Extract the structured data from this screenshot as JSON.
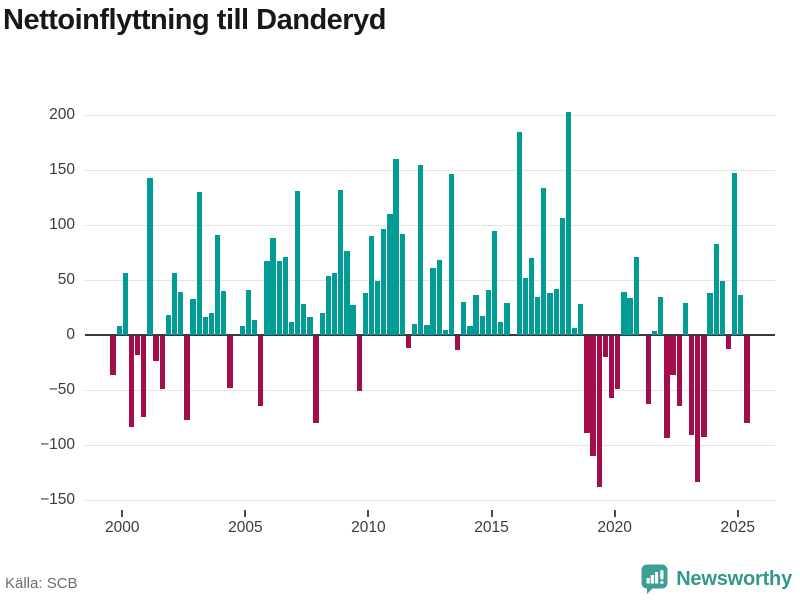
{
  "title": "Nettoinflyttning till Danderyd",
  "source": "Källa: SCB",
  "brand": {
    "name": "Newsworthy"
  },
  "colors": {
    "positive_bar": "#009C95",
    "negative_bar": "#A30D4B",
    "grid": "#e4e4e4",
    "zero_axis": "#3a3a3a",
    "brand_teal": "#3C9E94",
    "title_text": "#181818",
    "tick_text": "#3c3c3c",
    "source_text": "#6d6d6d"
  },
  "chart_data": {
    "type": "bar",
    "title": "Nettoinflyttning till Danderyd",
    "frequency": "quarterly",
    "start_year": 2000,
    "start_quarter": 1,
    "values": [
      -35,
      8,
      56,
      -83,
      -17,
      -74,
      143,
      -23,
      -48,
      18,
      56,
      39,
      -76,
      33,
      130,
      16,
      20,
      91,
      40,
      -47,
      0,
      8,
      41,
      14,
      -64,
      67,
      88,
      67,
      71,
      12,
      131,
      28,
      16,
      -79,
      20,
      54,
      56,
      132,
      76,
      27,
      -50,
      38,
      90,
      49,
      96,
      110,
      160,
      92,
      -11,
      10,
      155,
      9,
      61,
      68,
      5,
      146,
      -13,
      30,
      8,
      36,
      17,
      41,
      95,
      12,
      29,
      0,
      185,
      52,
      70,
      35,
      134,
      38,
      42,
      106,
      203,
      6,
      28,
      -88,
      -109,
      -137,
      -19,
      -56,
      -48,
      39,
      34,
      71,
      0,
      -62,
      4,
      35,
      -93,
      -35,
      -64,
      29,
      -90,
      -133,
      -92,
      38,
      83,
      49,
      -12,
      147,
      36,
      -79
    ],
    "y_ticks": [
      200,
      150,
      100,
      50,
      0,
      -50,
      -100,
      -150
    ],
    "x_ticks": [
      2000,
      2005,
      2010,
      2015,
      2020,
      2025
    ],
    "ylim": [
      -155,
      215
    ],
    "xlabel": "",
    "ylabel": "",
    "grid": true,
    "legend": "none"
  }
}
